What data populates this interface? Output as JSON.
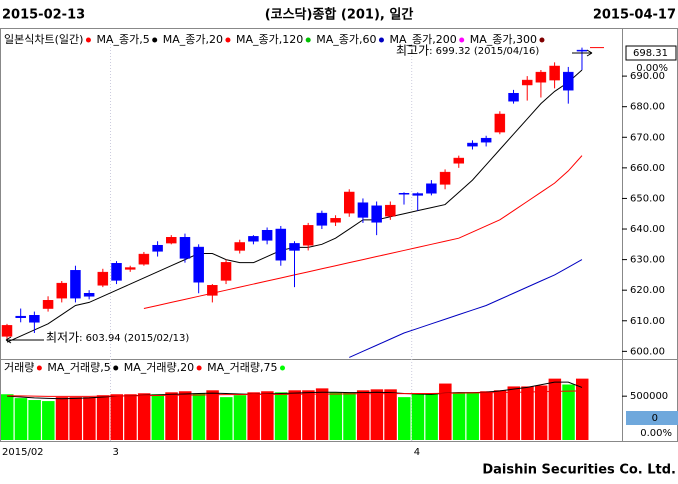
{
  "header": {
    "start": "2015-02-13",
    "title": "(코스닥)종합 (201), 일간",
    "end": "2015-04-17"
  },
  "footer": "Daishin Securities Co. Ltd.",
  "chart_data": [
    {
      "type": "candlestick",
      "legend_title": "일본식차트(일간)",
      "up_color": "#ff0000",
      "down_color": "#0000ff",
      "open": [
        604.9,
        611.5,
        611.8,
        614,
        617.4,
        626.5,
        619,
        621.6,
        628.8,
        626.8,
        628.5,
        634.7,
        635.4,
        637.3,
        634.1,
        618.3,
        623.2,
        633,
        637.6,
        639.6,
        640,
        635.3,
        634.7,
        645.2,
        642.2,
        645.2,
        648.6,
        647.6,
        644.2,
        651.7,
        651.6,
        654.8,
        654.6,
        661.5,
        668.1,
        669.7,
        671.7,
        684.4,
        687.1,
        688,
        688.7,
        691.3,
        698.5
      ],
      "high": [
        609,
        614,
        613,
        618,
        623,
        628,
        620,
        627,
        629.5,
        628,
        632.5,
        636,
        638,
        638.5,
        635,
        622,
        630,
        636.5,
        638,
        640.5,
        641,
        636,
        642,
        646,
        644.5,
        653,
        650,
        649,
        649,
        652,
        652,
        656,
        659.5,
        664,
        669,
        670.5,
        678.5,
        685.5,
        690,
        692,
        694.5,
        693,
        699.32
      ],
      "low": [
        603.94,
        609.5,
        606,
        613,
        616,
        616,
        617,
        621,
        622,
        626,
        628,
        631,
        635,
        629,
        619,
        616,
        622,
        632,
        635,
        635,
        628,
        621,
        633,
        640,
        641,
        644,
        642,
        638,
        643,
        648,
        646,
        651,
        653,
        660,
        666,
        667,
        671,
        681,
        682,
        683,
        686,
        681,
        692
      ],
      "close": [
        608.5,
        611,
        609.5,
        616.7,
        622.3,
        617.4,
        618,
        625.9,
        623.2,
        627.4,
        631.8,
        632.7,
        637.3,
        630.4,
        622.6,
        621.6,
        629.1,
        635.6,
        636,
        636.3,
        629.8,
        633,
        641.2,
        641.2,
        643.5,
        652.1,
        643.8,
        642.2,
        647.8,
        651.5,
        651,
        651.7,
        658.6,
        663.2,
        667.1,
        668.4,
        677.6,
        681.8,
        688.7,
        691.3,
        693.3,
        685.4,
        698.31
      ],
      "series": [
        {
          "name": "MA_종가,5",
          "color": "#000000",
          "values": [
            603,
            605,
            607,
            609,
            612,
            615,
            616,
            618,
            620,
            622,
            624,
            626,
            628,
            630,
            632,
            632,
            630,
            629,
            629,
            631,
            633,
            634,
            634,
            635,
            637,
            640,
            643,
            643,
            644,
            645,
            646,
            647,
            648,
            652,
            656,
            661,
            666,
            671,
            676,
            681,
            685,
            688,
            692
          ]
        },
        {
          "name": "MA_종가,20",
          "color": "#ff0000",
          "values": [
            null,
            null,
            null,
            null,
            null,
            null,
            null,
            null,
            null,
            null,
            614,
            615,
            616,
            617,
            618,
            619,
            620,
            621,
            622,
            623,
            624,
            625,
            626,
            627,
            628,
            629,
            630,
            631,
            632,
            633,
            634,
            635,
            636,
            637,
            639,
            641,
            643,
            646,
            649,
            652,
            655,
            659,
            664
          ]
        },
        {
          "name": "MA_종가,120",
          "color": "#00c000"
        },
        {
          "name": "MA_종가,60",
          "color": "#0000c0",
          "values": [
            null,
            null,
            null,
            null,
            null,
            null,
            null,
            null,
            null,
            null,
            null,
            null,
            null,
            null,
            null,
            null,
            null,
            null,
            null,
            null,
            null,
            null,
            null,
            null,
            null,
            598,
            600,
            602,
            604,
            606,
            607.5,
            609,
            610.5,
            612,
            613.5,
            615,
            617,
            619,
            621,
            623,
            625,
            627.5,
            630
          ]
        },
        {
          "name": "MA_종가,200",
          "color": "#ff00ff"
        },
        {
          "name": "MA_종가,300",
          "color": "#800000"
        }
      ],
      "ylim": [
        597.5,
        700.5
      ],
      "yticks": [
        {
          "value": 600,
          "label": "600.00"
        },
        {
          "value": 610,
          "label": "610.00"
        },
        {
          "value": 620,
          "label": "620.00"
        },
        {
          "value": 630,
          "label": "630.00"
        },
        {
          "value": 640,
          "label": "640.00"
        },
        {
          "value": 650,
          "label": "650.00"
        },
        {
          "value": 660,
          "label": "660.00"
        },
        {
          "value": 670,
          "label": "670.00"
        },
        {
          "value": 680,
          "label": "680.00"
        },
        {
          "value": 690,
          "label": "690.00"
        }
      ],
      "current": 698.31,
      "change": "0.00%",
      "annotations": [
        {
          "label": "최고가",
          "text": " : 699.32 (2015/04/16)",
          "color": "#ff0000"
        },
        {
          "label": "최저가",
          "text": " : 603.94 (2015/02/13)",
          "color": "#0000c0"
        }
      ]
    },
    {
      "type": "bar",
      "legend_title": "거래량",
      "legend_color": "#ff0000",
      "categories": [
        "2015/02",
        null,
        null,
        null,
        null,
        null,
        null,
        null,
        "3",
        null,
        null,
        null,
        null,
        null,
        null,
        null,
        null,
        null,
        null,
        null,
        null,
        null,
        null,
        null,
        null,
        null,
        null,
        null,
        null,
        null,
        "4",
        null,
        null,
        null,
        null,
        null,
        null,
        null,
        null,
        null,
        null,
        null,
        null
      ],
      "values": [
        522000,
        478000,
        456000,
        444000,
        489000,
        489000,
        489000,
        511000,
        522000,
        522000,
        533000,
        522000,
        544000,
        556000,
        533000,
        567000,
        489000,
        511000,
        544000,
        556000,
        544000,
        567000,
        567000,
        589000,
        544000,
        544000,
        567000,
        578000,
        578000,
        489000,
        533000,
        533000,
        644000,
        544000,
        544000,
        556000,
        567000,
        611000,
        611000,
        622000,
        700000,
        633000,
        700000
      ],
      "colors": [
        "#00ff00",
        "#00ff00",
        "#00ff00",
        "#00ff00",
        "#ff0000",
        "#ff0000",
        "#ff0000",
        "#ff0000",
        "#ff0000",
        "#ff0000",
        "#ff0000",
        "#00ff00",
        "#ff0000",
        "#ff0000",
        "#00ff00",
        "#ff0000",
        "#00ff00",
        "#00ff00",
        "#ff0000",
        "#ff0000",
        "#00ff00",
        "#ff0000",
        "#ff0000",
        "#ff0000",
        "#00ff00",
        "#00ff00",
        "#ff0000",
        "#ff0000",
        "#ff0000",
        "#00ff00",
        "#00ff00",
        "#00ff00",
        "#ff0000",
        "#00ff00",
        "#00ff00",
        "#ff0000",
        "#ff0000",
        "#ff0000",
        "#ff0000",
        "#ff0000",
        "#ff0000",
        "#00ff00",
        "#ff0000"
      ],
      "series": [
        {
          "name": "MA_거래량,5",
          "color": "#000000",
          "values": [
            500000,
            490000,
            480000,
            475000,
            470000,
            475000,
            480000,
            490000,
            500000,
            505000,
            510000,
            515000,
            520000,
            525000,
            530000,
            535000,
            530000,
            525000,
            520000,
            525000,
            530000,
            535000,
            540000,
            545000,
            545000,
            540000,
            540000,
            545000,
            540000,
            530000,
            525000,
            520000,
            535000,
            540000,
            540000,
            545000,
            560000,
            580000,
            600000,
            630000,
            660000,
            660000,
            600000
          ]
        },
        {
          "name": "MA_거래량,20",
          "color": "#ff0000",
          "values": [
            505000,
            503000,
            500000,
            498000,
            497000,
            497000,
            498000,
            500000,
            502000,
            504000,
            506000,
            508000,
            510000,
            512000,
            514000,
            516000,
            517000,
            518000,
            519000,
            520000,
            521000,
            522000,
            523000,
            524000,
            525000,
            526000,
            527000,
            528000,
            529000,
            529000,
            530000,
            531000,
            533000,
            535000,
            537000,
            539000,
            541000,
            544000,
            547000,
            551000,
            555000,
            558000,
            560000
          ]
        },
        {
          "name": "MA_거래량,75",
          "color": "#00ff00"
        }
      ],
      "ylim": [
        0,
        867000
      ],
      "yticks": [
        500000
      ],
      "current": 0,
      "change": "0.00%"
    }
  ]
}
